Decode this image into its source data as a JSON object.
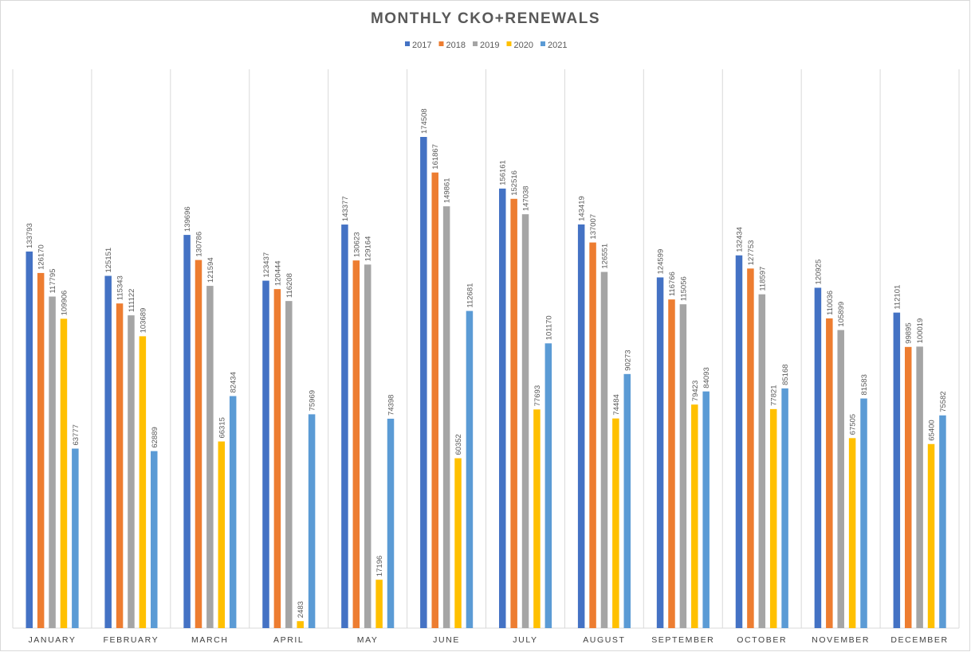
{
  "chart_data": {
    "type": "bar",
    "title": "MONTHLY CKO+RENEWALS",
    "xlabel": "",
    "ylabel": "",
    "ylim": [
      0,
      180000
    ],
    "grid": false,
    "legend_position": "top",
    "categories": [
      "JANUARY",
      "FEBRUARY",
      "MARCH",
      "APRIL",
      "MAY",
      "JUNE",
      "JULY",
      "AUGUST",
      "SEPTEMBER",
      "OCTOBER",
      "NOVEMBER",
      "DECEMBER"
    ],
    "series": [
      {
        "name": "2017",
        "color": "#4472C4",
        "values": [
          133793,
          125151,
          139696,
          123437,
          143377,
          174508,
          156161,
          143419,
          124599,
          132434,
          120925,
          112101
        ]
      },
      {
        "name": "2018",
        "color": "#ED7D31",
        "values": [
          126170,
          115343,
          130786,
          120444,
          130623,
          161867,
          152516,
          137007,
          116766,
          127753,
          110036,
          99895
        ]
      },
      {
        "name": "2019",
        "color": "#A5A5A5",
        "values": [
          117795,
          111122,
          121594,
          116208,
          129164,
          149861,
          147038,
          126551,
          115056,
          118597,
          105899,
          100019
        ]
      },
      {
        "name": "2020",
        "color": "#FFC000",
        "values": [
          109906,
          103689,
          66315,
          2483,
          17196,
          60352,
          77693,
          74484,
          79423,
          77821,
          67505,
          65400
        ]
      },
      {
        "name": "2021",
        "color": "#5B9BD5",
        "values": [
          63777,
          62889,
          82434,
          75969,
          74398,
          112681,
          101170,
          90273,
          84093,
          85168,
          81583,
          75582
        ]
      }
    ]
  }
}
